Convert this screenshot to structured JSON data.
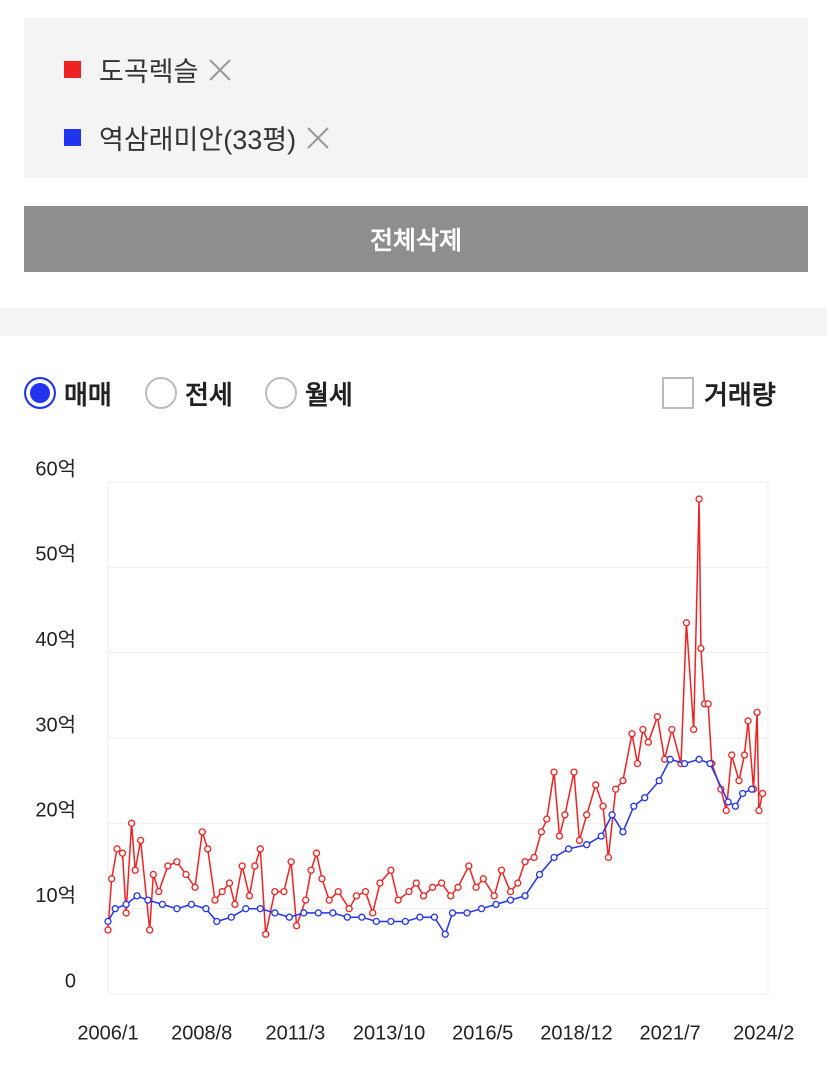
{
  "ui": {
    "clear_button": "전체삭제",
    "trade_types": [
      {
        "label": "매매",
        "checked": true
      },
      {
        "label": "전세",
        "checked": false
      },
      {
        "label": "월세",
        "checked": false
      }
    ],
    "volume_checkbox": {
      "label": "거래량",
      "checked": false
    }
  },
  "chart_data": {
    "type": "line",
    "xlim": [
      2006.0,
      2024.2
    ],
    "xticks": [
      {
        "value": 2006.0,
        "label": "2006/1"
      },
      {
        "value": 2008.583,
        "label": "2008/8"
      },
      {
        "value": 2011.167,
        "label": "2011/3"
      },
      {
        "value": 2013.75,
        "label": "2013/10"
      },
      {
        "value": 2016.333,
        "label": "2016/5"
      },
      {
        "value": 2018.917,
        "label": "2018/12"
      },
      {
        "value": 2021.5,
        "label": "2021/7"
      },
      {
        "value": 2024.083,
        "label": "2024/2"
      }
    ],
    "ylim": [
      0,
      60
    ],
    "yticks": [
      0,
      {
        "value": 10,
        "label": "10억"
      },
      {
        "value": 20,
        "label": "20억"
      },
      {
        "value": 30,
        "label": "30억"
      },
      {
        "value": 40,
        "label": "40억"
      },
      {
        "value": 50,
        "label": "50억"
      },
      {
        "value": 60,
        "label": "60억"
      }
    ],
    "grid": true,
    "series": [
      {
        "name": "도곡렉슬",
        "color": "#ee2222",
        "x": [
          2006.0,
          2006.1,
          2006.25,
          2006.4,
          2006.5,
          2006.65,
          2006.75,
          2006.9,
          2007.15,
          2007.25,
          2007.4,
          2007.65,
          2007.9,
          2008.15,
          2008.4,
          2008.6,
          2008.75,
          2008.95,
          2009.15,
          2009.35,
          2009.5,
          2009.7,
          2009.9,
          2010.05,
          2010.2,
          2010.35,
          2010.6,
          2010.85,
          2011.05,
          2011.2,
          2011.45,
          2011.6,
          2011.75,
          2011.9,
          2012.1,
          2012.35,
          2012.65,
          2012.85,
          2013.1,
          2013.3,
          2013.5,
          2013.8,
          2014.0,
          2014.3,
          2014.5,
          2014.7,
          2014.95,
          2015.2,
          2015.45,
          2015.65,
          2015.95,
          2016.15,
          2016.35,
          2016.65,
          2016.85,
          2017.1,
          2017.3,
          2017.5,
          2017.75,
          2017.95,
          2018.1,
          2018.3,
          2018.45,
          2018.6,
          2018.85,
          2019.0,
          2019.2,
          2019.45,
          2019.65,
          2019.8,
          2020.0,
          2020.2,
          2020.45,
          2020.6,
          2020.75,
          2020.9,
          2021.15,
          2021.35,
          2021.55,
          2021.8,
          2021.95,
          2022.15,
          2022.3,
          2022.35,
          2022.45,
          2022.55,
          2022.65,
          2022.9,
          2023.05,
          2023.2,
          2023.4,
          2023.55,
          2023.65,
          2023.8,
          2023.9,
          2023.95,
          2024.05
        ],
        "values": [
          7.5,
          13.5,
          17,
          16.5,
          9.5,
          20,
          14.5,
          18,
          7.5,
          14,
          12,
          15,
          15.5,
          14,
          12.5,
          19,
          17,
          11,
          12,
          13,
          10.5,
          15,
          11.5,
          15,
          17,
          7,
          12,
          12,
          15.5,
          8,
          11,
          14.5,
          16.5,
          13.5,
          11,
          12,
          10,
          11.5,
          12,
          9.5,
          13,
          14.5,
          11,
          12,
          13,
          11.5,
          12.5,
          13,
          11.5,
          12.5,
          15,
          12.5,
          13.5,
          11.5,
          14.5,
          12,
          13,
          15.5,
          16,
          19,
          20.5,
          26,
          18.5,
          21,
          26,
          18,
          21,
          24.5,
          22,
          16,
          24,
          25,
          30.5,
          27,
          31,
          29.5,
          32.5,
          27.5,
          31,
          27,
          43.5,
          31,
          58,
          40.5,
          34,
          34,
          27,
          24,
          21.5,
          28,
          25,
          28,
          32,
          24,
          33,
          21.5,
          23.5
        ]
      },
      {
        "name": "역삼래미안(33평)",
        "color": "#2233ee",
        "x": [
          2006.0,
          2006.2,
          2006.5,
          2006.8,
          2007.1,
          2007.5,
          2007.9,
          2008.3,
          2008.7,
          2009.0,
          2009.4,
          2009.8,
          2010.2,
          2010.6,
          2011.0,
          2011.4,
          2011.8,
          2012.2,
          2012.6,
          2013.0,
          2013.4,
          2013.8,
          2014.2,
          2014.6,
          2015.0,
          2015.3,
          2015.5,
          2015.9,
          2016.3,
          2016.7,
          2017.1,
          2017.5,
          2017.9,
          2018.3,
          2018.7,
          2019.2,
          2019.6,
          2019.9,
          2020.2,
          2020.5,
          2020.8,
          2021.2,
          2021.5,
          2021.9,
          2022.3,
          2022.6,
          2023.1,
          2023.3,
          2023.5,
          2023.75
        ],
        "values": [
          8.5,
          10,
          10.5,
          11.5,
          11,
          10.5,
          10,
          10.5,
          10,
          8.5,
          9,
          10,
          10,
          9.5,
          9,
          9.5,
          9.5,
          9.5,
          9,
          9,
          8.5,
          8.5,
          8.5,
          9,
          9,
          7,
          9.5,
          9.5,
          10,
          10.5,
          11,
          11.5,
          14,
          16,
          17,
          17.5,
          18.5,
          21,
          19,
          22,
          23,
          25,
          27.5,
          27,
          27.5,
          27,
          22.5,
          22,
          23.5,
          24
        ]
      }
    ]
  }
}
